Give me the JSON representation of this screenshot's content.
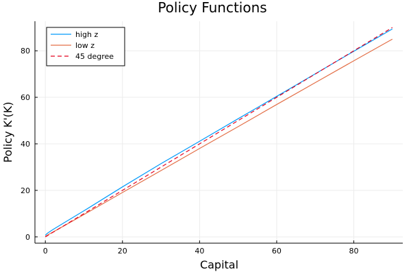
{
  "chart_data": {
    "type": "line",
    "title": "Policy Functions",
    "xlabel": "Capital",
    "ylabel": "Policy K'(K)",
    "xlim": [
      -2.7,
      92.7
    ],
    "ylim": [
      -2.7,
      92.7
    ],
    "xticks": [
      0,
      20,
      40,
      60,
      80
    ],
    "yticks": [
      0,
      20,
      40,
      60,
      80
    ],
    "grid": true,
    "legend_position": "top-left",
    "x": [
      0,
      0.5,
      1,
      2,
      5,
      10,
      20,
      30,
      40,
      50,
      60,
      70,
      80,
      90
    ],
    "series": [
      {
        "name": "high z",
        "color": "#009AFA",
        "style": "solid",
        "values": [
          0.7,
          1.5,
          2.1,
          3.2,
          6.2,
          11.2,
          21.5,
          31.5,
          41.1,
          50.8,
          60.4,
          70.1,
          79.8,
          89.4
        ]
      },
      {
        "name": "low z",
        "color": "#E36F47",
        "style": "solid",
        "values": [
          0.2,
          0.7,
          1.2,
          2.1,
          4.9,
          9.6,
          19.1,
          28.5,
          38.0,
          47.4,
          56.9,
          66.3,
          75.7,
          85.0
        ]
      },
      {
        "name": "45 degree",
        "color": "#E3001E",
        "style": "dashed",
        "values": [
          0,
          0.5,
          1,
          2,
          5,
          10,
          20,
          30,
          40,
          50,
          60,
          70,
          80,
          90
        ]
      }
    ]
  }
}
